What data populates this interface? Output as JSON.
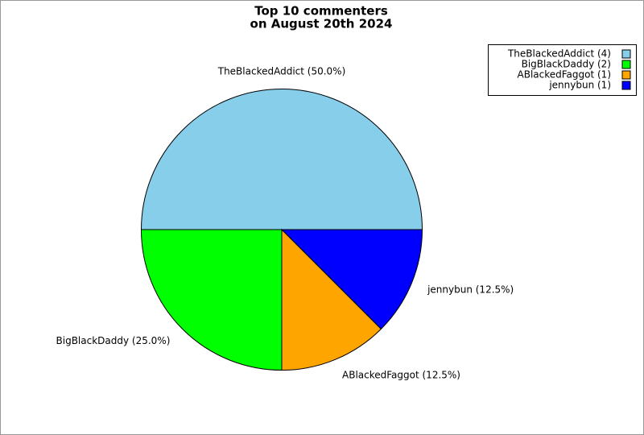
{
  "chart_data": {
    "type": "pie",
    "title": "Top 10 commenters",
    "subtitle": "on August 20th 2024",
    "values": [
      4,
      2,
      1,
      1
    ],
    "value_labels": [
      "TheBlackedAddict (50.0%)",
      "BigBlackDaddy (25.0%)",
      "ABlackedFaggot (12.5%)",
      "jennybun (12.5%)"
    ],
    "legend_labels": [
      "TheBlackedAddict (4)",
      "BigBlackDaddy (2)",
      "ABlackedFaggot (1)",
      "jennybun (1)"
    ],
    "colors": [
      "#87ceeb",
      "#00ff00",
      "#ffa500",
      "#0000ff"
    ],
    "legend": "upper right"
  }
}
